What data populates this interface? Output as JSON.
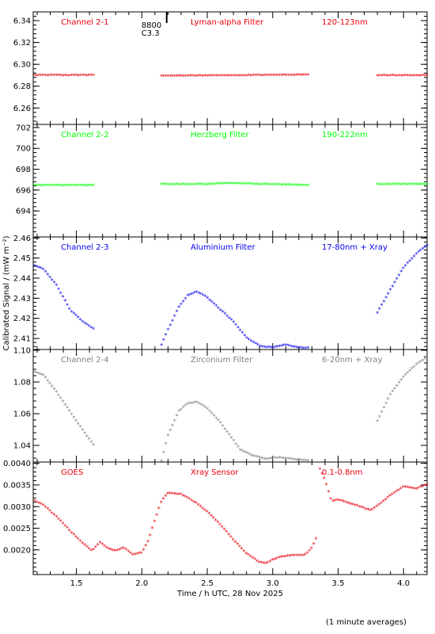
{
  "chart_data": {
    "type": "scatter",
    "xlabel": "Time / h UTC, 28 Nov 2025",
    "ylabel": "Calibrated Signal / (mW m⁻²)",
    "footnote": "(1 minute averages)",
    "xlim": [
      1.17,
      4.18
    ],
    "x_ticks": [
      "1.5",
      "2.0",
      "2.5",
      "3.0",
      "3.5",
      "4.0"
    ],
    "event_marker": {
      "x": 2.19,
      "labels": [
        "8800",
        "C3.3"
      ]
    },
    "panels": [
      {
        "channel": "Channel 2-1",
        "filter": "Lyman-alpha Filter",
        "band": "120-123nm",
        "color": "#e8000b",
        "ylim": [
          6.245,
          6.348
        ],
        "y_ticks": [
          "6.26",
          "6.28",
          "6.30",
          "6.32",
          "6.34"
        ],
        "segments": [
          {
            "x": [
              1.18,
              1.63
            ],
            "y": [
              6.2895,
              6.2895
            ]
          },
          {
            "x": [
              2.15,
              3.27
            ],
            "y": [
              6.2888,
              6.2898
            ]
          },
          {
            "x": [
              3.8,
              4.18
            ],
            "y": [
              6.2893,
              6.2893
            ]
          }
        ]
      },
      {
        "channel": "Channel 2-2",
        "filter": "Herzberg Filter",
        "band": "190-222nm",
        "color": "#00ff00",
        "ylim": [
          691.5,
          702.3
        ],
        "y_ticks": [
          "694",
          "696",
          "698",
          "700",
          "702"
        ],
        "segments": [
          {
            "x": [
              1.18,
              1.63
            ],
            "y": [
              696.4,
              696.4
            ]
          },
          {
            "x": [
              2.15,
              2.5,
              2.65,
              3.27
            ],
            "y": [
              696.5,
              696.5,
              696.6,
              696.4
            ]
          },
          {
            "x": [
              3.8,
              4.18
            ],
            "y": [
              696.5,
              696.5
            ]
          }
        ]
      },
      {
        "channel": "Channel 2-3",
        "filter": "Aluminium Filter",
        "band": "17-80nm + Xray",
        "color": "#0000ee",
        "ylim": [
          2.4045,
          2.4605
        ],
        "y_ticks": [
          "2.41",
          "2.42",
          "2.43",
          "2.44",
          "2.45",
          "2.46"
        ],
        "segments": [
          {
            "x": [
              1.18,
              1.25,
              1.35,
              1.45,
              1.55,
              1.63
            ],
            "y": [
              2.446,
              2.444,
              2.436,
              2.424,
              2.418,
              2.4145
            ]
          },
          {
            "x": [
              2.15,
              2.2,
              2.28,
              2.35,
              2.42,
              2.5,
              2.6,
              2.7,
              2.8,
              2.9,
              3.0,
              3.1,
              3.2,
              3.27
            ],
            "y": [
              2.4065,
              2.414,
              2.425,
              2.431,
              2.433,
              2.43,
              2.424,
              2.418,
              2.41,
              2.406,
              2.405,
              2.4065,
              2.405,
              2.405
            ]
          },
          {
            "x": [
              3.8,
              3.9,
              4.0,
              4.1,
              4.18
            ],
            "y": [
              2.4225,
              2.434,
              2.445,
              2.452,
              2.456
            ]
          }
        ]
      },
      {
        "channel": "Channel 2-4",
        "filter": "Zirconium Filter",
        "band": "6-20nm + Xray",
        "color": "#808080",
        "ylim": [
          1.0295,
          1.1005
        ],
        "y_ticks": [
          "1.04",
          "1.06",
          "1.08",
          "1.10"
        ],
        "segments": [
          {
            "x": [
              1.18,
              1.25,
              1.35,
              1.45,
              1.55,
              1.63
            ],
            "y": [
              1.086,
              1.084,
              1.073,
              1.061,
              1.049,
              1.04
            ]
          },
          {
            "x": [
              2.15,
              2.2,
              2.28,
              2.35,
              2.42,
              2.5,
              2.6,
              2.68,
              2.75,
              2.85,
              2.95,
              3.05,
              3.15,
              3.27
            ],
            "y": [
              1.03,
              1.046,
              1.061,
              1.066,
              1.067,
              1.063,
              1.054,
              1.045,
              1.037,
              1.033,
              1.031,
              1.032,
              1.031,
              1.03
            ]
          },
          {
            "x": [
              3.8,
              3.9,
              4.0,
              4.1,
              4.18
            ],
            "y": [
              1.055,
              1.072,
              1.083,
              1.091,
              1.095
            ]
          }
        ]
      },
      {
        "channel": "GOES",
        "filter": "Xray Sensor",
        "band": "0.1-0.8nm",
        "color": "#e8000b",
        "ylim": [
          0.00143,
          0.00403
        ],
        "y_ticks": [
          "0.0020",
          "0.0025",
          "0.0030",
          "0.0035",
          "0.0040"
        ],
        "segments": [
          {
            "x": [
              1.18,
              1.25,
              1.35,
              1.45,
              1.55,
              1.62,
              1.68,
              1.74,
              1.8,
              1.86,
              1.93,
              2.0,
              2.05,
              2.1,
              2.15,
              2.2,
              2.3,
              2.4,
              2.5,
              2.6,
              2.7,
              2.8,
              2.9,
              2.95,
              3.0,
              3.05,
              3.1,
              3.15,
              3.2,
              3.25,
              3.3,
              3.33
            ],
            "y": [
              0.00312,
              0.00302,
              0.00275,
              0.00243,
              0.00214,
              0.00196,
              0.00216,
              0.00202,
              0.00196,
              0.00204,
              0.00188,
              0.00192,
              0.0022,
              0.00268,
              0.00312,
              0.0033,
              0.00327,
              0.0031,
              0.00287,
              0.00257,
              0.00222,
              0.0019,
              0.0017,
              0.00167,
              0.00176,
              0.00181,
              0.00184,
              0.00186,
              0.00186,
              0.00187,
              0.00203,
              0.00225
            ]
          },
          {
            "x": [
              3.36,
              3.4,
              3.45,
              3.5,
              3.6,
              3.7,
              3.75,
              3.82,
              3.9,
              4.0,
              4.1,
              4.18
            ],
            "y": [
              0.00385,
              0.0036,
              0.0031,
              0.00315,
              0.00305,
              0.00295,
              0.0029,
              0.00305,
              0.00325,
              0.00345,
              0.0034,
              0.0035
            ]
          }
        ]
      }
    ]
  }
}
